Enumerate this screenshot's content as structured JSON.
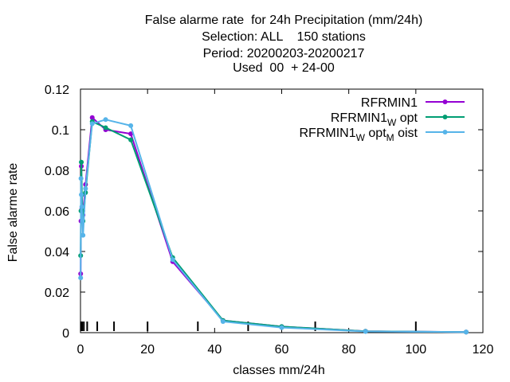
{
  "chart_data": {
    "type": "line",
    "title_lines": [
      "False alarme rate  for 24h Precipitation (mm/24h)",
      "Selection: ALL    150 stations",
      "Period: 20200203-20200217",
      "Used  00  + 24-00"
    ],
    "xlabel": "classes mm/24h",
    "ylabel": "False alarme rate",
    "xlim": [
      0,
      120
    ],
    "ylim": [
      0,
      0.12
    ],
    "x_ticks": [
      "0",
      "20",
      "40",
      "60",
      "80",
      "100",
      "120"
    ],
    "y_ticks": [
      "0",
      "0.02",
      "0.04",
      "0.06",
      "0.08",
      "0.1",
      "0.12"
    ],
    "x_tick_values": [
      0,
      20,
      40,
      60,
      80,
      100,
      120
    ],
    "y_tick_values": [
      0,
      0.02,
      0.04,
      0.06,
      0.08,
      0.1,
      0.12
    ],
    "class_marks": [
      0.1,
      0.2,
      0.3,
      0.5,
      1,
      2,
      5,
      10,
      20,
      35,
      50,
      70,
      100
    ],
    "grid": false,
    "legend_position": "top-right",
    "series": [
      {
        "name": "RFRMIN1",
        "legend_parts": [
          [
            "RFRMIN1",
            ""
          ]
        ],
        "color": "#9400d3",
        "x": [
          0.05,
          0.15,
          0.25,
          0.4,
          0.75,
          1.5,
          3.5,
          7.5,
          15,
          27.5,
          42.5,
          60,
          85,
          115
        ],
        "y": [
          0.029,
          0.055,
          0.082,
          0.061,
          0.058,
          0.073,
          0.106,
          0.1,
          0.098,
          0.035,
          0.006,
          0.003,
          0.0007,
          0.0003
        ]
      },
      {
        "name": "RFRMIN1_W opt",
        "legend_parts": [
          [
            "RFRMIN1",
            "W"
          ],
          [
            "opt",
            ""
          ]
        ],
        "color": "#009e73",
        "x": [
          0.05,
          0.15,
          0.25,
          0.4,
          0.75,
          1.5,
          3.5,
          7.5,
          15,
          27.5,
          42.5,
          60,
          85,
          115
        ],
        "y": [
          0.038,
          0.06,
          0.084,
          0.068,
          0.055,
          0.069,
          0.104,
          0.101,
          0.095,
          0.037,
          0.006,
          0.003,
          0.0007,
          0.0003
        ]
      },
      {
        "name": "RFRMIN1_W opt_M oist",
        "legend_parts": [
          [
            "RFRMIN1",
            "W"
          ],
          [
            "opt",
            "M"
          ],
          [
            "oist",
            ""
          ]
        ],
        "color": "#56b4e9",
        "x": [
          0.05,
          0.15,
          0.25,
          0.4,
          0.75,
          1.5,
          3.5,
          7.5,
          15,
          27.5,
          42.5,
          60,
          85,
          115
        ],
        "y": [
          0.027,
          0.076,
          0.068,
          0.062,
          0.048,
          0.071,
          0.103,
          0.105,
          0.102,
          0.036,
          0.0055,
          0.0025,
          0.0006,
          0.0003
        ]
      }
    ]
  }
}
